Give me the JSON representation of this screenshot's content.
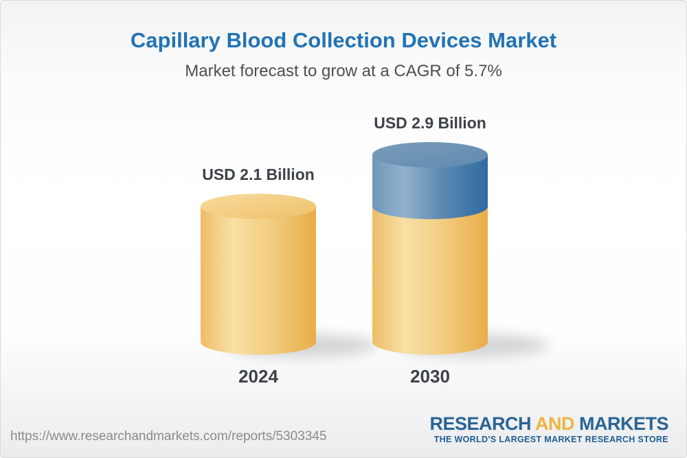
{
  "header": {
    "title": "Capillary Blood Collection Devices Market",
    "subtitle": "Market forecast to grow at a CAGR of 5.7%"
  },
  "chart_data": {
    "type": "bar",
    "style": "3d-cylinder",
    "categories": [
      "2024",
      "2030"
    ],
    "values": [
      2.1,
      2.9
    ],
    "labels": [
      "USD 2.1 Billion",
      "USD 2.9 Billion"
    ],
    "unit": "USD Billion",
    "growth_segment": {
      "from": 2.1,
      "to": 2.9,
      "shown_on": "2030"
    },
    "cagr_percent": 5.7,
    "title": "Capillary Blood Collection Devices Market",
    "legend": "none",
    "axes": "none",
    "colors": {
      "base_bar_yellow": "#f3cd82",
      "growth_bar_blue": "#5d89b1",
      "title_blue": "#2273b3",
      "label_dark": "#3c4247"
    }
  },
  "footer": {
    "url": "https://www.researchandmarkets.com/reports/5303345",
    "logo": {
      "word1": "RESEARCH",
      "word2": "AND",
      "word3": "MARKETS",
      "tagline": "THE WORLD'S LARGEST MARKET RESEARCH STORE",
      "blue": "#2a6496",
      "gold": "#efb440"
    }
  }
}
